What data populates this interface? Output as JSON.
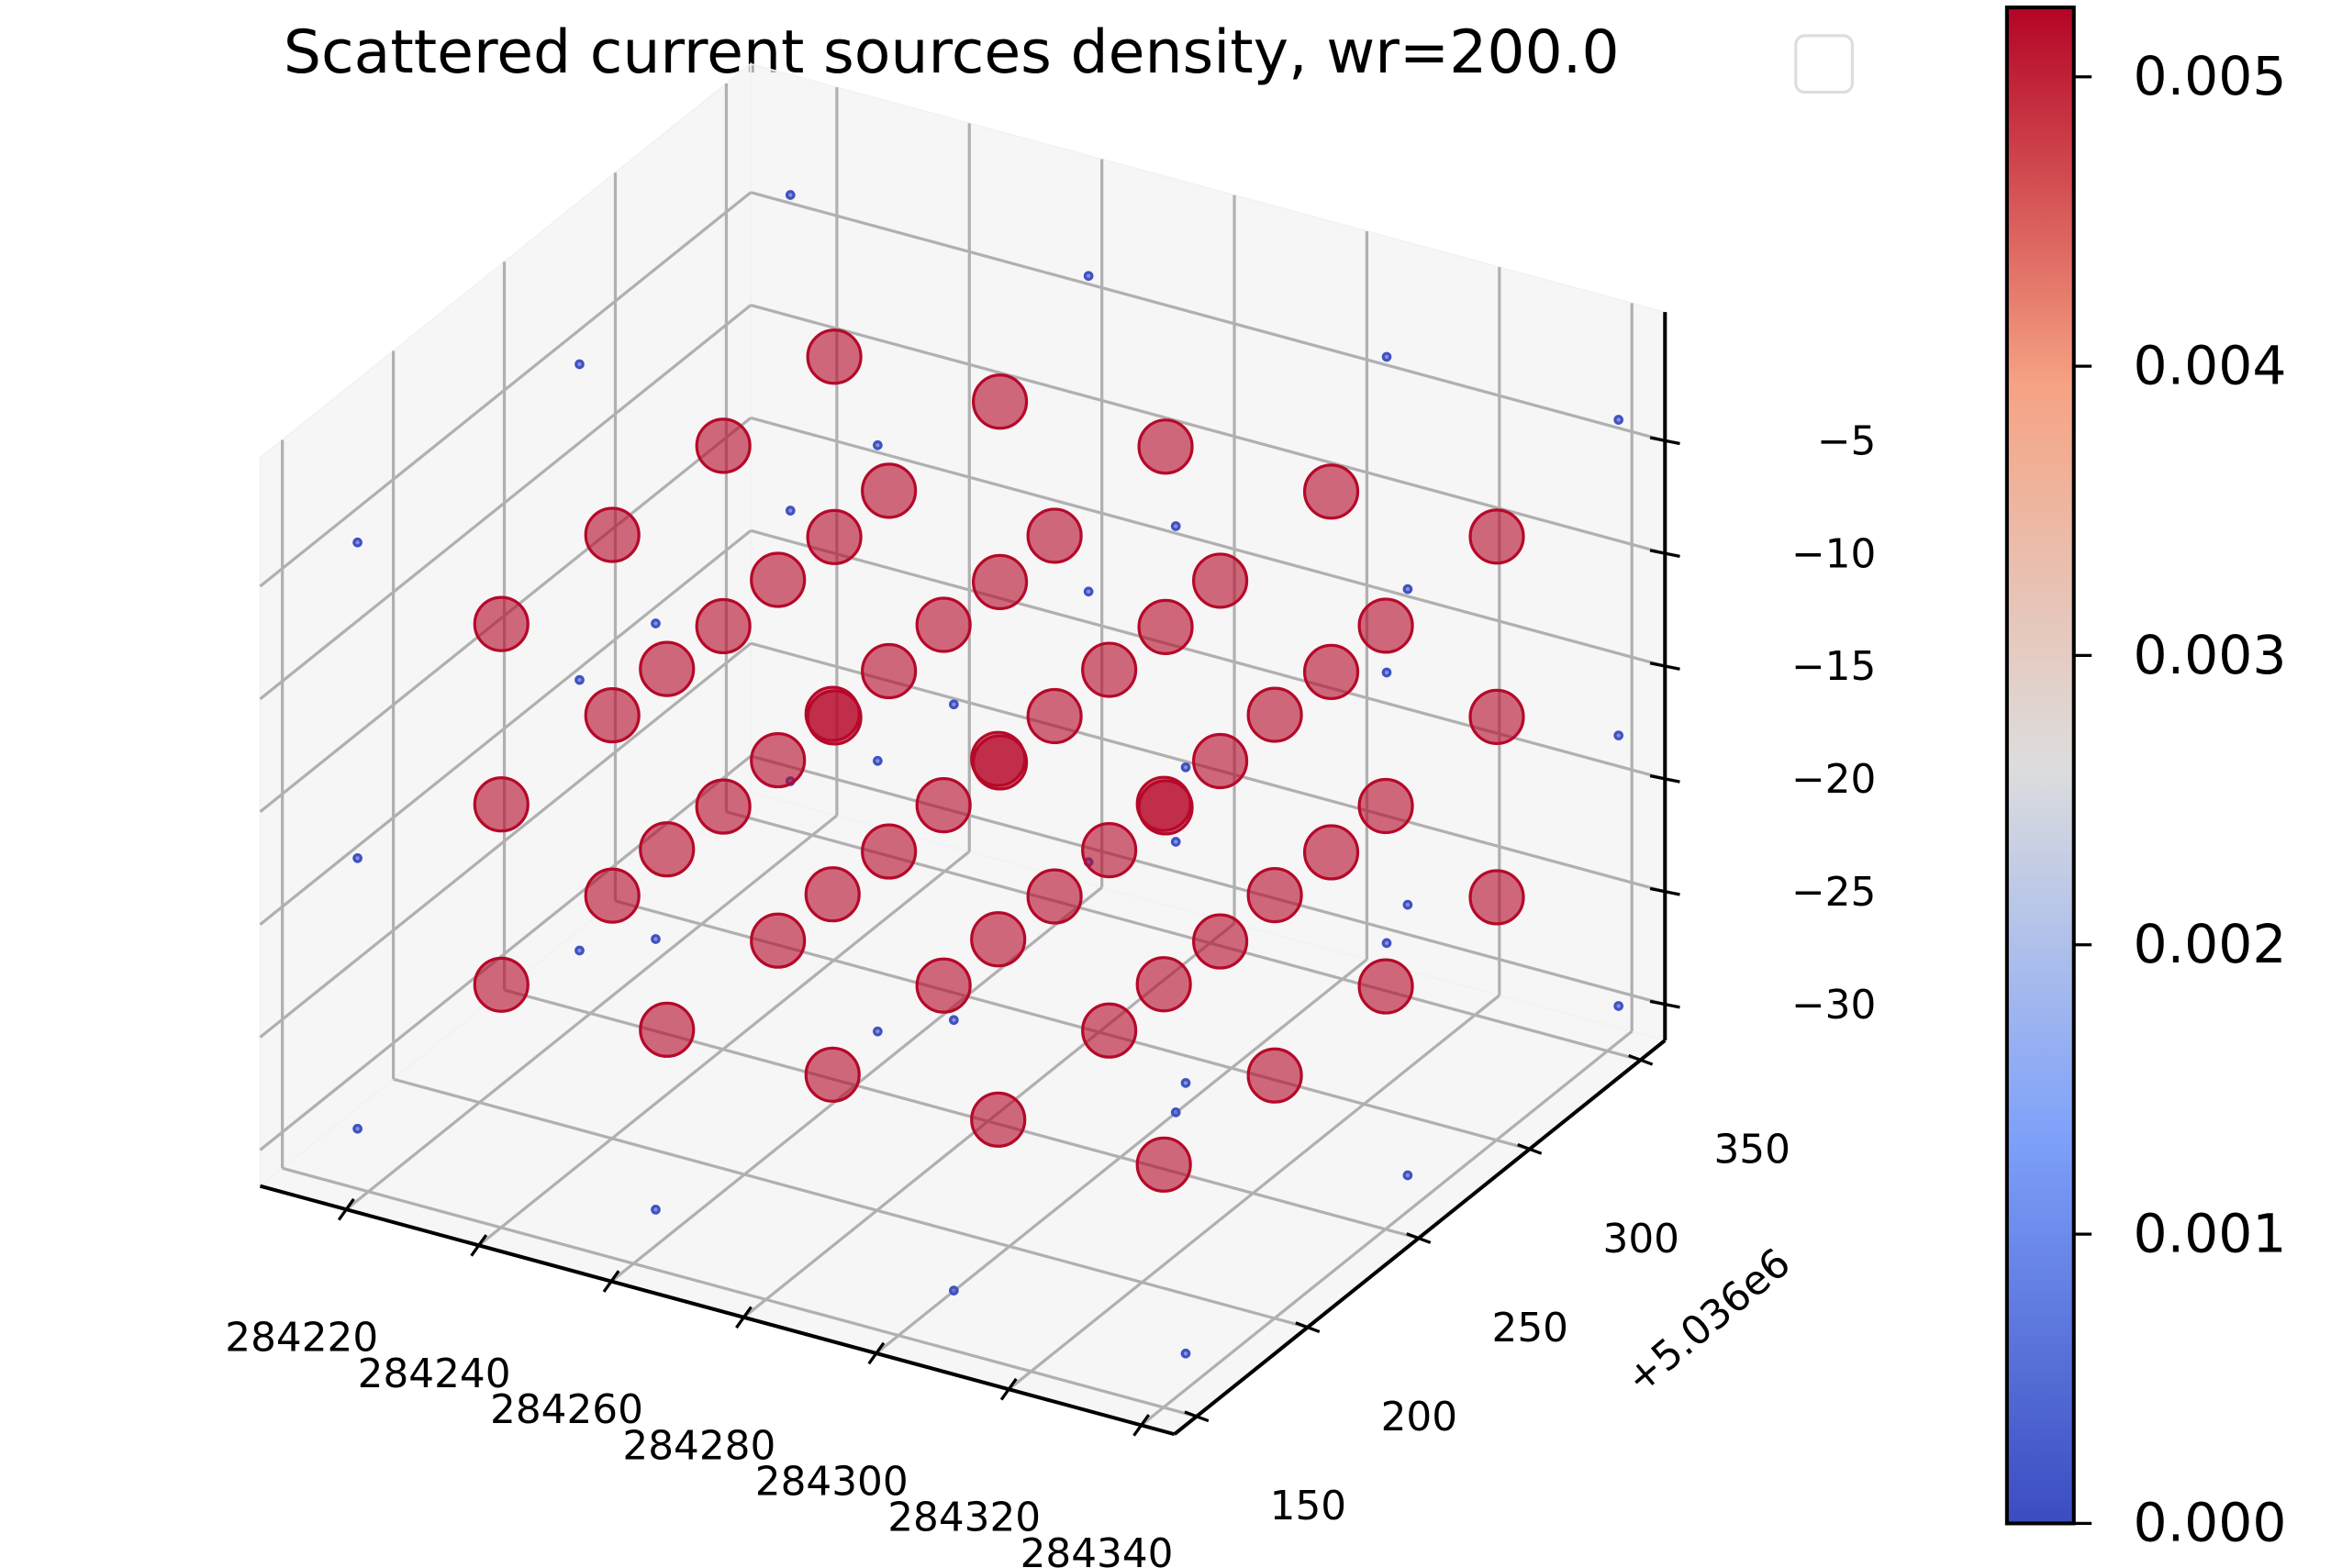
{
  "chart_data": {
    "type": "scatter3d",
    "title": "Scattered current sources density, wr=200.0",
    "x": [
      284230,
      284255,
      284280,
      284305,
      284330,
      284230,
      284255,
      284280,
      284305,
      284330,
      284230,
      284255,
      284280,
      284305,
      284330,
      284230,
      284255,
      284280,
      284305,
      284330,
      284230,
      284255,
      284280,
      284305,
      284330,
      284230,
      284255,
      284280,
      284305,
      284330,
      284230,
      284255,
      284280,
      284305,
      284330,
      284230,
      284255,
      284280,
      284305,
      284330,
      284230,
      284255,
      284280,
      284305,
      284330,
      284230,
      284255,
      284280,
      284305,
      284330,
      284230,
      284255,
      284280,
      284305,
      284330,
      284230,
      284255,
      284280,
      284305,
      284330,
      284215,
      284260,
      284305,
      284340,
      284215,
      284260,
      284305,
      284340,
      284215,
      284260,
      284305,
      284340,
      284215,
      284260,
      284305,
      284340,
      284215,
      284260,
      284305,
      284340,
      284215,
      284260,
      284305,
      284340,
      284215,
      284260,
      284305,
      284340,
      284215,
      284260,
      284305,
      284340,
      284215,
      284260,
      284305,
      284340
    ],
    "y": [
      180,
      180,
      180,
      180,
      180,
      230,
      230,
      230,
      230,
      230,
      280,
      280,
      280,
      280,
      280,
      330,
      330,
      330,
      330,
      330,
      180,
      180,
      180,
      180,
      180,
      230,
      230,
      230,
      230,
      230,
      280,
      280,
      280,
      280,
      280,
      330,
      330,
      330,
      330,
      330,
      180,
      180,
      180,
      180,
      180,
      230,
      230,
      230,
      230,
      230,
      280,
      280,
      280,
      280,
      280,
      330,
      330,
      330,
      330,
      330,
      160,
      160,
      160,
      160,
      260,
      260,
      260,
      260,
      355,
      355,
      355,
      355,
      160,
      160,
      160,
      160,
      260,
      260,
      260,
      260,
      355,
      355,
      355,
      355,
      160,
      160,
      160,
      160,
      260,
      260,
      260,
      260,
      355,
      355,
      355,
      355
    ],
    "z": [
      -8,
      -8,
      -8,
      -8,
      -8,
      -8,
      -8,
      -8,
      -8,
      -8,
      -8,
      -8,
      -8,
      -8,
      -8,
      -8,
      -8,
      -8,
      -8,
      -8,
      -16,
      -16,
      -16,
      -16,
      -16,
      -16,
      -16,
      -16,
      -16,
      -16,
      -16,
      -16,
      -16,
      -16,
      -16,
      -16,
      -16,
      -16,
      -16,
      -16,
      -24,
      -24,
      -24,
      -24,
      -24,
      -24,
      -24,
      -24,
      -24,
      -24,
      -24,
      -24,
      -24,
      -24,
      -24,
      -24,
      -24,
      -24,
      -24,
      -24,
      -4,
      -4,
      -4,
      -4,
      -4,
      -4,
      -4,
      -4,
      -4,
      -4,
      -4,
      -4,
      -18,
      -18,
      -18,
      -18,
      -18,
      -18,
      -18,
      -18,
      -18,
      -18,
      -18,
      -18,
      -30,
      -30,
      -30,
      -30,
      -30,
      -30,
      -30,
      -30,
      -30,
      -30,
      -30,
      -30
    ],
    "values": [
      0.0052,
      0.0052,
      0.0052,
      0.0052,
      0.0052,
      0.0052,
      0.0052,
      0.0052,
      0.0052,
      0.0052,
      0.0052,
      0.0052,
      0.0052,
      0.0052,
      0.0052,
      0.0052,
      0.0052,
      0.0052,
      0.0052,
      0.0052,
      0.0052,
      0.0052,
      0.0052,
      0.0052,
      0.0052,
      0.0052,
      0.0052,
      0.0052,
      0.0052,
      0.0052,
      0.0052,
      0.0052,
      0.0052,
      0.0052,
      0.0052,
      0.0052,
      0.0052,
      0.0052,
      0.0052,
      0.0052,
      0.0052,
      0.0052,
      0.0052,
      0.0052,
      0.0052,
      0.0052,
      0.0052,
      0.0052,
      0.0052,
      0.0052,
      0.0052,
      0.0052,
      0.0052,
      0.0052,
      0.0052,
      0.0052,
      0.0052,
      0.0052,
      0.0052,
      0.0052,
      0.0001,
      0.0001,
      0.0001,
      0.0001,
      0.0001,
      0.0001,
      0.0001,
      0.0001,
      0.0001,
      0.0001,
      0.0001,
      0.0001,
      0.0001,
      0.0001,
      0.0001,
      0.0001,
      0.0001,
      0.0001,
      0.0001,
      0.0001,
      0.0001,
      0.0001,
      0.0001,
      0.0001,
      0.0001,
      0.0001,
      0.0001,
      0.0001,
      0.0001,
      0.0001,
      0.0001,
      0.0001,
      0.0001,
      0.0001,
      0.0001,
      0.0001
    ],
    "xlim": [
      284207,
      284345
    ],
    "ylim": [
      140,
      361
    ],
    "zlim": [
      -31.6,
      0.7
    ],
    "xticks": [
      284220,
      284240,
      284260,
      284280,
      284300,
      284320,
      284340
    ],
    "yticks": [
      150,
      200,
      250,
      300,
      350
    ],
    "y_offset_label": "+5.036e6",
    "zticks": [
      {
        "value": -5,
        "label": "−5"
      },
      {
        "value": -10,
        "label": "−10"
      },
      {
        "value": -15,
        "label": "−15"
      },
      {
        "value": -20,
        "label": "−20"
      },
      {
        "value": -25,
        "label": "−25"
      },
      {
        "value": -30,
        "label": "−30"
      }
    ],
    "cmap": "coolwarm",
    "clim": [
      0,
      0.00524
    ],
    "colorbar_ticks": [
      {
        "value": 0,
        "label": "0.000"
      },
      {
        "value": 0.001,
        "label": "0.001"
      },
      {
        "value": 0.002,
        "label": "0.002"
      },
      {
        "value": 0.003,
        "label": "0.003"
      },
      {
        "value": 0.004,
        "label": "0.004"
      },
      {
        "value": 0.005,
        "label": "0.005"
      }
    ],
    "grid": true
  }
}
